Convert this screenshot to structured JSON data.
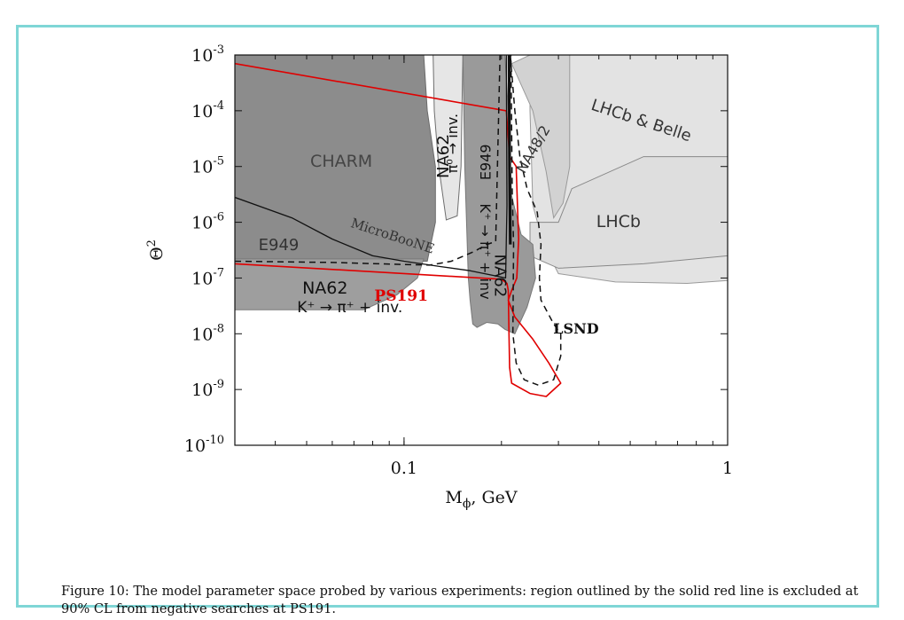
{
  "chart_data": {
    "type": "area",
    "xlabel": "M",
    "xlabel_sub": "ϕ",
    "xlabel_unit": ", GeV",
    "ylabel": "Θ",
    "ylabel_sup": "2",
    "xscale": "log",
    "yscale": "log",
    "xlim": [
      0.03,
      1.0
    ],
    "ylim": [
      1e-10,
      0.001
    ],
    "x_ticks": [
      {
        "value": 0.1,
        "label": "0.1"
      },
      {
        "value": 1.0,
        "label": "1"
      }
    ],
    "y_ticks": [
      {
        "value": 0.001,
        "base": "10",
        "exp": "-3"
      },
      {
        "value": 0.0001,
        "base": "10",
        "exp": "-4"
      },
      {
        "value": 1e-05,
        "base": "10",
        "exp": "-5"
      },
      {
        "value": 1e-06,
        "base": "10",
        "exp": "-6"
      },
      {
        "value": 1e-07,
        "base": "10",
        "exp": "-7"
      },
      {
        "value": 1e-08,
        "base": "10",
        "exp": "-8"
      },
      {
        "value": 1e-09,
        "base": "10",
        "exp": "-9"
      },
      {
        "value": 1e-10,
        "base": "10",
        "exp": "-10"
      }
    ],
    "regions": [
      {
        "name": "LHCb & Belle",
        "fill": "#e3e3e3",
        "stroke": "#9a9a9a",
        "points": [
          [
            0.245,
            0.001
          ],
          [
            1.0,
            0.001
          ],
          [
            1.0,
            9e-08
          ],
          [
            0.75,
            8e-08
          ],
          [
            0.45,
            8.5e-08
          ],
          [
            0.3,
            1.2e-07
          ],
          [
            0.27,
            4e-07
          ],
          [
            0.25,
            2e-06
          ],
          [
            0.245,
            0.0001
          ]
        ]
      },
      {
        "name": "LHCb",
        "fill": "#dedede",
        "stroke": "#888888",
        "points": [
          [
            0.245,
            1e-06
          ],
          [
            0.3,
            1e-06
          ],
          [
            0.33,
            4e-06
          ],
          [
            0.55,
            1.5e-05
          ],
          [
            1.0,
            1.5e-05
          ],
          [
            1.0,
            2.5e-07
          ],
          [
            0.55,
            1.8e-07
          ],
          [
            0.3,
            1.5e-07
          ],
          [
            0.245,
            2.5e-07
          ]
        ]
      },
      {
        "name": "NA48/2",
        "fill": "#d2d2d2",
        "stroke": "#9a9a9a",
        "points": [
          [
            0.215,
            0.0007
          ],
          [
            0.25,
            0.0001
          ],
          [
            0.275,
            8e-06
          ],
          [
            0.29,
            1.2e-06
          ],
          [
            0.31,
            2.2e-06
          ],
          [
            0.325,
            1e-05
          ],
          [
            0.325,
            0.001
          ],
          [
            0.245,
            0.001
          ]
        ]
      },
      {
        "name": "CHARM",
        "fill": "#8c8c8c",
        "stroke": "#6a6a6a",
        "points": [
          [
            0.03,
            0.001
          ],
          [
            0.115,
            0.001
          ],
          [
            0.118,
            0.0001
          ],
          [
            0.125,
            1e-05
          ],
          [
            0.125,
            1e-06
          ],
          [
            0.118,
            2e-07
          ],
          [
            0.03,
            2e-07
          ]
        ]
      },
      {
        "name": "NA62 pi0",
        "fill": "#e6e6e6",
        "stroke": "#6e6e6e",
        "points": [
          [
            0.123,
            0.001
          ],
          [
            0.152,
            0.001
          ],
          [
            0.151,
            0.0001
          ],
          [
            0.15,
            1e-05
          ],
          [
            0.146,
            1.3e-06
          ],
          [
            0.135,
            1.1e-06
          ],
          [
            0.128,
            1e-05
          ],
          [
            0.124,
            0.0001
          ]
        ]
      },
      {
        "name": "E949 low",
        "fill": "#9e9e9e",
        "stroke": "#7a7a7a",
        "points": [
          [
            0.03,
            2.2e-07
          ],
          [
            0.115,
            2.2e-07
          ],
          [
            0.11,
            1e-07
          ],
          [
            0.095,
            5e-08
          ],
          [
            0.075,
            2.7e-08
          ],
          [
            0.03,
            2.7e-08
          ]
        ]
      },
      {
        "name": "E949 high",
        "fill": "#9a9a9a",
        "stroke": "#777777",
        "points": [
          [
            0.152,
            0.001
          ],
          [
            0.205,
            0.001
          ],
          [
            0.21,
            0.0001
          ],
          [
            0.215,
            3e-06
          ],
          [
            0.23,
            6e-07
          ],
          [
            0.25,
            4e-07
          ],
          [
            0.255,
            1e-07
          ],
          [
            0.24,
            3e-08
          ],
          [
            0.22,
            1e-08
          ],
          [
            0.205,
            1.2e-08
          ],
          [
            0.195,
            1.5e-08
          ],
          [
            0.18,
            1.6e-08
          ],
          [
            0.168,
            1.3e-08
          ],
          [
            0.163,
            1.5e-08
          ],
          [
            0.16,
            4e-08
          ],
          [
            0.158,
            1e-07
          ],
          [
            0.156,
            1e-06
          ],
          [
            0.154,
            1e-05
          ]
        ]
      }
    ],
    "series": [
      {
        "name": "PS191",
        "color": "#e00000",
        "style": "solid",
        "width": 1.6,
        "points": [
          [
            0.03,
            0.0007
          ],
          [
            0.207,
            0.0001
          ],
          [
            0.212,
            1.5e-05
          ],
          [
            0.222,
            1e-05
          ],
          [
            0.225,
            1e-06
          ],
          [
            0.226,
            5e-07
          ],
          [
            0.223,
            1e-07
          ],
          [
            0.215,
            6e-08
          ],
          [
            0.21,
            4e-08
          ],
          [
            0.22,
            2e-08
          ],
          [
            0.25,
            8e-09
          ],
          [
            0.28,
            3e-09
          ],
          [
            0.305,
            1.3e-09
          ],
          [
            0.275,
            7.5e-10
          ],
          [
            0.245,
            8.5e-10
          ],
          [
            0.215,
            1.3e-09
          ],
          [
            0.212,
            2.5e-09
          ],
          [
            0.211,
            1e-08
          ],
          [
            0.21,
            6e-08
          ],
          [
            0.208,
            8e-08
          ],
          [
            0.2,
            9.5e-08
          ],
          [
            0.03,
            1.8e-07
          ]
        ]
      },
      {
        "name": "MicroBooNE",
        "color": "#111111",
        "style": "solid",
        "width": 1.3,
        "points": [
          [
            0.03,
            2.8e-06
          ],
          [
            0.045,
            1.2e-06
          ],
          [
            0.06,
            5e-07
          ],
          [
            0.08,
            2.5e-07
          ],
          [
            0.1,
            2e-07
          ],
          [
            0.13,
            1.6e-07
          ],
          [
            0.16,
            1.35e-07
          ],
          [
            0.19,
            1.1e-07
          ],
          [
            0.206,
            1e-07
          ],
          [
            0.208,
            2e-06
          ],
          [
            0.207,
            0.001
          ]
        ]
      },
      {
        "name": "MicroBooNE edge",
        "color": "#111111",
        "style": "solid",
        "width": 3.2,
        "points": [
          [
            0.211,
            0.001
          ],
          [
            0.212,
            1e-05
          ],
          [
            0.213,
            4e-07
          ]
        ]
      },
      {
        "name": "LSND",
        "color": "#111111",
        "style": "dashed",
        "width": 1.5,
        "points": [
          [
            0.03,
            2e-07
          ],
          [
            0.06,
            1.9e-07
          ],
          [
            0.1,
            1.75e-07
          ],
          [
            0.12,
            1.7e-07
          ],
          [
            0.14,
            2e-07
          ],
          [
            0.165,
            3e-07
          ],
          [
            0.18,
            4e-07
          ],
          [
            0.192,
            4.5e-07
          ],
          [
            0.198,
            0.001
          ]
        ]
      },
      {
        "name": "LSND loop",
        "color": "#111111",
        "style": "dashed",
        "width": 1.5,
        "points": [
          [
            0.213,
            0.001
          ],
          [
            0.22,
            0.0001
          ],
          [
            0.228,
            1.5e-05
          ],
          [
            0.24,
            4e-06
          ],
          [
            0.258,
            1.5e-06
          ],
          [
            0.265,
            4e-07
          ],
          [
            0.262,
            1e-07
          ],
          [
            0.265,
            4e-08
          ],
          [
            0.29,
            1.5e-08
          ],
          [
            0.305,
            1e-08
          ],
          [
            0.305,
            4e-09
          ],
          [
            0.29,
            1.5e-09
          ],
          [
            0.26,
            1.2e-09
          ],
          [
            0.235,
            1.5e-09
          ],
          [
            0.222,
            3e-09
          ],
          [
            0.217,
            1e-08
          ],
          [
            0.218,
            4e-07
          ],
          [
            0.216,
            3e-06
          ],
          [
            0.214,
            0.001
          ]
        ]
      }
    ],
    "annotations": [
      {
        "text": "CHARM",
        "x": 0.064,
        "y": 1.2e-05,
        "rotate": 0,
        "size": 19,
        "color": "#444",
        "font": "sans"
      },
      {
        "text": "MicroBooNE",
        "x": 0.092,
        "y": 5.5e-07,
        "rotate": 18,
        "size": 15,
        "color": "#333",
        "font": "serif"
      },
      {
        "text": "E949",
        "x": 0.041,
        "y": 3.8e-07,
        "rotate": 0,
        "size": 18,
        "color": "#333",
        "font": "sans"
      },
      {
        "text": "NA62",
        "x": 0.057,
        "y": 6.4e-08,
        "rotate": 0,
        "size": 19,
        "color": "#111",
        "font": "sans"
      },
      {
        "text": "K⁺ → π⁺ + inv.",
        "x": 0.068,
        "y": 2.9e-08,
        "rotate": 0,
        "size": 17,
        "color": "#111",
        "font": "sans"
      },
      {
        "text": "NA62",
        "x": 0.133,
        "y": 1.5e-05,
        "rotate": -90,
        "size": 18,
        "color": "#111",
        "font": "sans"
      },
      {
        "text": "π⁰ → inv.",
        "x": 0.142,
        "y": 2.6e-05,
        "rotate": -90,
        "size": 16,
        "color": "#111",
        "font": "sans"
      },
      {
        "text": "E949",
        "x": 0.18,
        "y": 1.2e-05,
        "rotate": -90,
        "size": 16,
        "color": "#111",
        "font": "sans"
      },
      {
        "text": "K⁺ → π⁺ + inv",
        "x": 0.177,
        "y": 3e-07,
        "rotate": 90,
        "size": 16,
        "color": "#111",
        "font": "sans"
      },
      {
        "text": "NA62",
        "x": 0.197,
        "y": 1.1e-07,
        "rotate": 90,
        "size": 18,
        "color": "#111",
        "font": "sans"
      },
      {
        "text": "NA48/2",
        "x": 0.252,
        "y": 2e-05,
        "rotate": -60,
        "size": 16,
        "color": "#333",
        "font": "sans"
      },
      {
        "text": "LHCb & Belle",
        "x": 0.54,
        "y": 6.5e-05,
        "rotate": 18,
        "size": 18,
        "color": "#333",
        "font": "sans"
      },
      {
        "text": "LHCb",
        "x": 0.46,
        "y": 1e-06,
        "rotate": 0,
        "size": 19,
        "color": "#333",
        "font": "sans"
      },
      {
        "text": "PS191",
        "x": 0.098,
        "y": 4.6e-08,
        "rotate": 0,
        "size": 17,
        "color": "#e00000",
        "font": "serif",
        "bold": true
      },
      {
        "text": "LSND",
        "x": 0.34,
        "y": 1.2e-08,
        "rotate": 0,
        "size": 16,
        "color": "#111",
        "font": "serif",
        "bold": true
      }
    ]
  },
  "caption": "Figure 10: The model parameter space probed by various experiments: region outlined by the solid red line is excluded at 90% CL from negative searches at PS191."
}
